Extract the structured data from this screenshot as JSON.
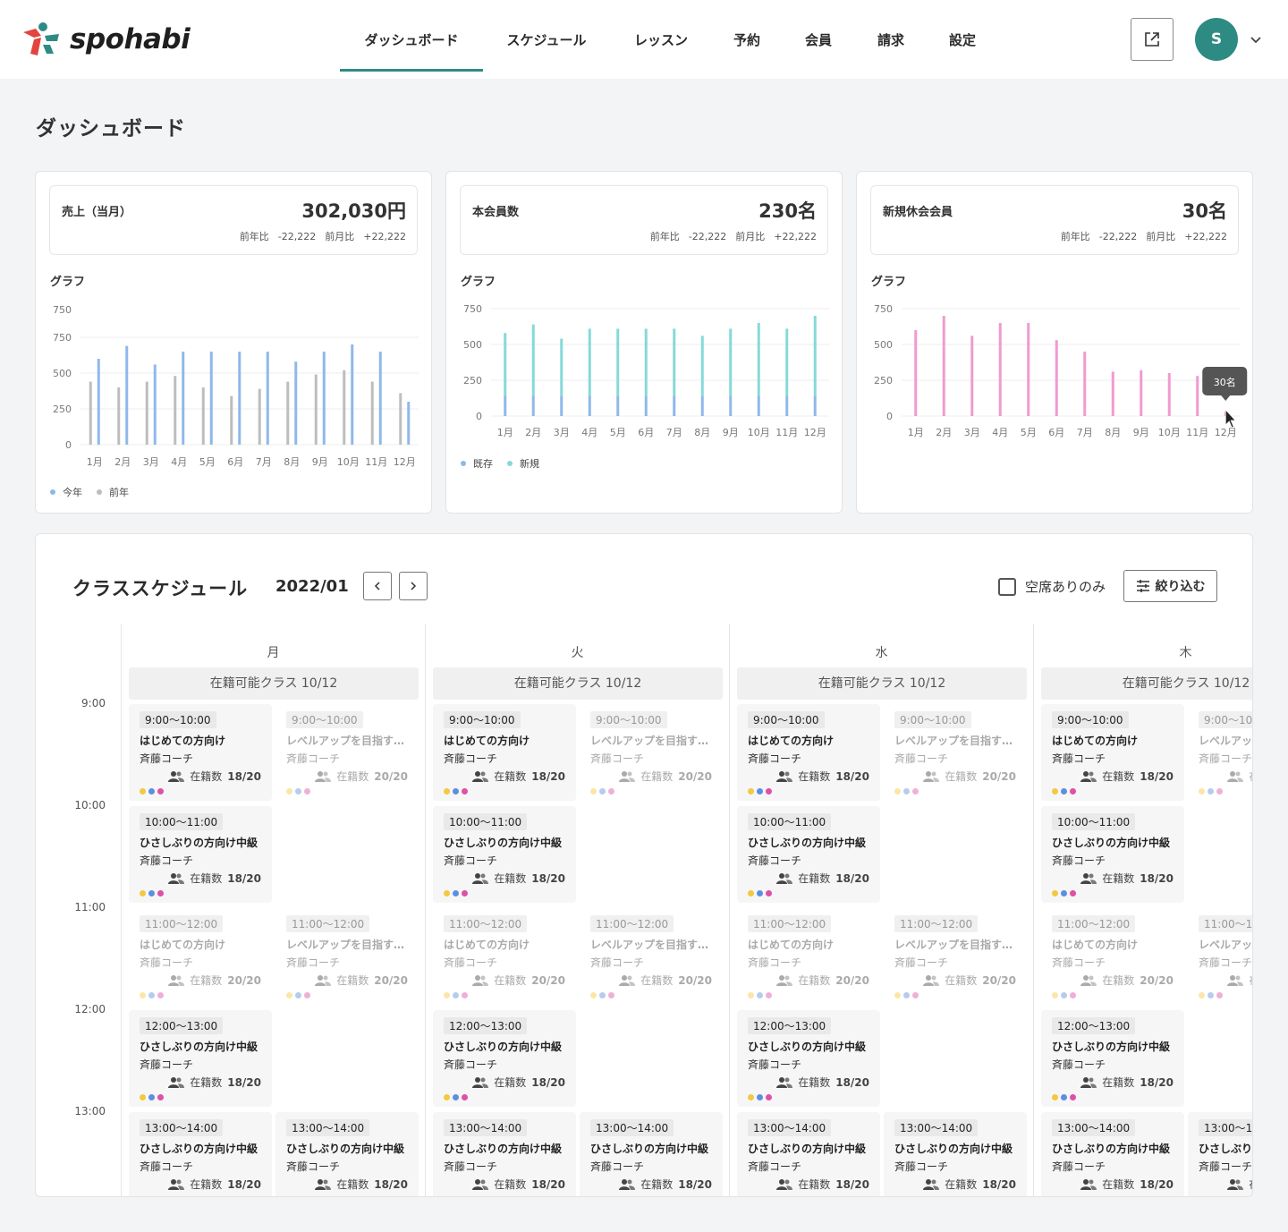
{
  "brand": {
    "name": "spohabi",
    "accent": "#2e8b84",
    "logo_colors": [
      "#e2443f",
      "#2e8b84",
      "#f2a23c"
    ]
  },
  "nav": {
    "items": [
      {
        "label": "ダッシュボード",
        "active": true
      },
      {
        "label": "スケジュール"
      },
      {
        "label": "レッスン"
      },
      {
        "label": "予約"
      },
      {
        "label": "会員"
      },
      {
        "label": "請求"
      },
      {
        "label": "設定"
      }
    ],
    "external_icon": "external-link-icon",
    "avatar_initial": "S"
  },
  "page": {
    "title": "ダッシュボード"
  },
  "cards": [
    {
      "label": "売上（当月）",
      "value": "302,030円",
      "yoy_label": "前年比",
      "yoy_value": "-22,222",
      "mom_label": "前月比",
      "mom_value": "+22,222",
      "graph_label": "グラフ"
    },
    {
      "label": "本会員数",
      "value": "230名",
      "yoy_label": "前年比",
      "yoy_value": "-22,222",
      "mom_label": "前月比",
      "mom_value": "+22,222",
      "graph_label": "グラフ"
    },
    {
      "label": "新規休会会員",
      "value": "30名",
      "yoy_label": "前年比",
      "yoy_value": "-22,222",
      "mom_label": "前月比",
      "mom_value": "+22,222",
      "graph_label": "グラフ"
    }
  ],
  "chart_data": [
    {
      "type": "bar",
      "categories": [
        "1月",
        "2月",
        "3月",
        "4月",
        "5月",
        "6月",
        "7月",
        "8月",
        "9月",
        "10月",
        "11月",
        "12月"
      ],
      "ylim": [
        0,
        750
      ],
      "yticks": [
        "0",
        "250",
        "500",
        "750",
        "750"
      ],
      "series": [
        {
          "name": "今年",
          "color": "#8fb8ea",
          "values": [
            600,
            690,
            560,
            650,
            650,
            650,
            650,
            580,
            650,
            700,
            650,
            300
          ]
        },
        {
          "name": "前年",
          "color": "#bdbdbd",
          "values": [
            440,
            400,
            440,
            480,
            400,
            340,
            390,
            440,
            490,
            520,
            440,
            360
          ]
        }
      ],
      "legend": "bottom-left",
      "grid": true
    },
    {
      "type": "bar",
      "stacked": true,
      "categories": [
        "1月",
        "2月",
        "3月",
        "4月",
        "5月",
        "6月",
        "7月",
        "8月",
        "9月",
        "10月",
        "11月",
        "12月"
      ],
      "ylim": [
        0,
        750
      ],
      "yticks": [
        "0",
        "250",
        "500",
        "750"
      ],
      "series": [
        {
          "name": "既存",
          "color": "#8fb8ea",
          "values": [
            140,
            140,
            140,
            140,
            140,
            140,
            140,
            140,
            140,
            140,
            140,
            140
          ]
        },
        {
          "name": "新規",
          "color": "#86d9d8",
          "values": [
            440,
            500,
            400,
            470,
            470,
            470,
            470,
            420,
            470,
            510,
            470,
            560
          ]
        }
      ],
      "legend": "bottom-left",
      "grid": true
    },
    {
      "type": "bar",
      "categories": [
        "1月",
        "2月",
        "3月",
        "4月",
        "5月",
        "6月",
        "7月",
        "8月",
        "9月",
        "10月",
        "11月",
        "12月"
      ],
      "ylim": [
        0,
        750
      ],
      "yticks": [
        "0",
        "250",
        "500",
        "750"
      ],
      "series": [
        {
          "color": "#f19ad0",
          "values": [
            600,
            700,
            560,
            650,
            650,
            530,
            450,
            310,
            320,
            300,
            280,
            30
          ]
        }
      ],
      "tooltip": "30名",
      "grid": true
    }
  ],
  "schedule": {
    "title": "クラススケジュール",
    "month": "2022/01",
    "prev_icon": "chevron-left-icon",
    "next_icon": "chevron-right-icon",
    "vacancy_only_label": "空席ありのみ",
    "filter_label": "絞り込む",
    "times": [
      "9:00",
      "10:00",
      "11:00",
      "12:00",
      "13:00"
    ],
    "days": [
      {
        "name": "月",
        "available": "在籍可能クラス 10/12"
      },
      {
        "name": "火",
        "available": "在籍可能クラス 10/12"
      },
      {
        "name": "水",
        "available": "在籍可能クラス 10/12"
      },
      {
        "name": "木",
        "available": "在籍可能クラス 10/12"
      }
    ],
    "lessons": [
      {
        "row": 0,
        "col": 0,
        "time": "9:00〜10:00",
        "name": "はじめての方向け",
        "coach": "斉藤コーチ",
        "enroll_label": "在籍数",
        "enroll": "18/20",
        "dim": false
      },
      {
        "row": 0,
        "col": 1,
        "time": "9:00〜10:00",
        "name": "レベルアップを目指す…",
        "coach": "斉藤コーチ",
        "enroll_label": "在籍数",
        "enroll": "20/20",
        "dim": true
      },
      {
        "row": 1,
        "col": 0,
        "time": "10:00〜11:00",
        "name": "ひさしぶりの方向け中級",
        "coach": "斉藤コーチ",
        "enroll_label": "在籍数",
        "enroll": "18/20",
        "dim": false
      },
      {
        "row": 2,
        "col": 0,
        "time": "11:00〜12:00",
        "name": "はじめての方向け",
        "coach": "斉藤コーチ",
        "enroll_label": "在籍数",
        "enroll": "20/20",
        "dim": true
      },
      {
        "row": 2,
        "col": 1,
        "time": "11:00〜12:00",
        "name": "レベルアップを目指す…",
        "coach": "斉藤コーチ",
        "enroll_label": "在籍数",
        "enroll": "20/20",
        "dim": true
      },
      {
        "row": 3,
        "col": 0,
        "time": "12:00〜13:00",
        "name": "ひさしぶりの方向け中級",
        "coach": "斉藤コーチ",
        "enroll_label": "在籍数",
        "enroll": "18/20",
        "dim": false
      },
      {
        "row": 4,
        "col": 0,
        "time": "13:00〜14:00",
        "name": "ひさしぶりの方向け中級",
        "coach": "斉藤コーチ",
        "enroll_label": "在籍数",
        "enroll": "18/20",
        "dim": false
      },
      {
        "row": 4,
        "col": 1,
        "time": "13:00〜14:00",
        "name": "ひさしぶりの方向け中級",
        "coach": "斉藤コーチ",
        "enroll_label": "在籍数",
        "enroll": "18/20",
        "dim": false
      }
    ],
    "dot_colors": [
      "#f5c842",
      "#5b8fe0",
      "#e04fa8"
    ]
  }
}
